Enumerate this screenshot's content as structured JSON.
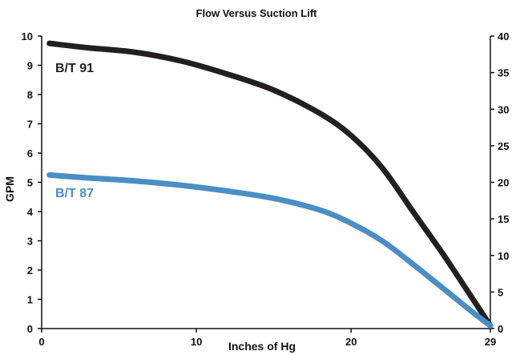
{
  "chart_data": {
    "type": "line",
    "title": "Flow Versus Suction Lift",
    "xlabel": "Inches of Hg",
    "ylabel": "GPM",
    "xlim": [
      0,
      29
    ],
    "ylim": [
      0,
      10
    ],
    "x_ticks": [
      "0",
      "10",
      "20",
      "29"
    ],
    "y_ticks": [
      "0",
      "1",
      "2",
      "3",
      "4",
      "5",
      "6",
      "7",
      "8",
      "9",
      "10"
    ],
    "right_ticks": [
      "0",
      "5",
      "10",
      "15",
      "20",
      "25",
      "30",
      "35",
      "40"
    ],
    "grid": false,
    "series": [
      {
        "name": "B/T 91",
        "color": "#231f20",
        "x": [
          0.5,
          3,
          6,
          9,
          12,
          15,
          18,
          20,
          22,
          24,
          26,
          28,
          29
        ],
        "y": [
          9.75,
          9.6,
          9.45,
          9.15,
          8.7,
          8.15,
          7.35,
          6.6,
          5.5,
          4.0,
          2.5,
          0.9,
          0.1
        ]
      },
      {
        "name": "B/T 87",
        "color": "#4a8ec4",
        "x": [
          0.5,
          3,
          6,
          9,
          12,
          15,
          18,
          20,
          22,
          24,
          26,
          28,
          29
        ],
        "y": [
          5.25,
          5.15,
          5.05,
          4.9,
          4.7,
          4.45,
          4.05,
          3.6,
          3.0,
          2.2,
          1.35,
          0.5,
          0.1
        ]
      }
    ]
  }
}
